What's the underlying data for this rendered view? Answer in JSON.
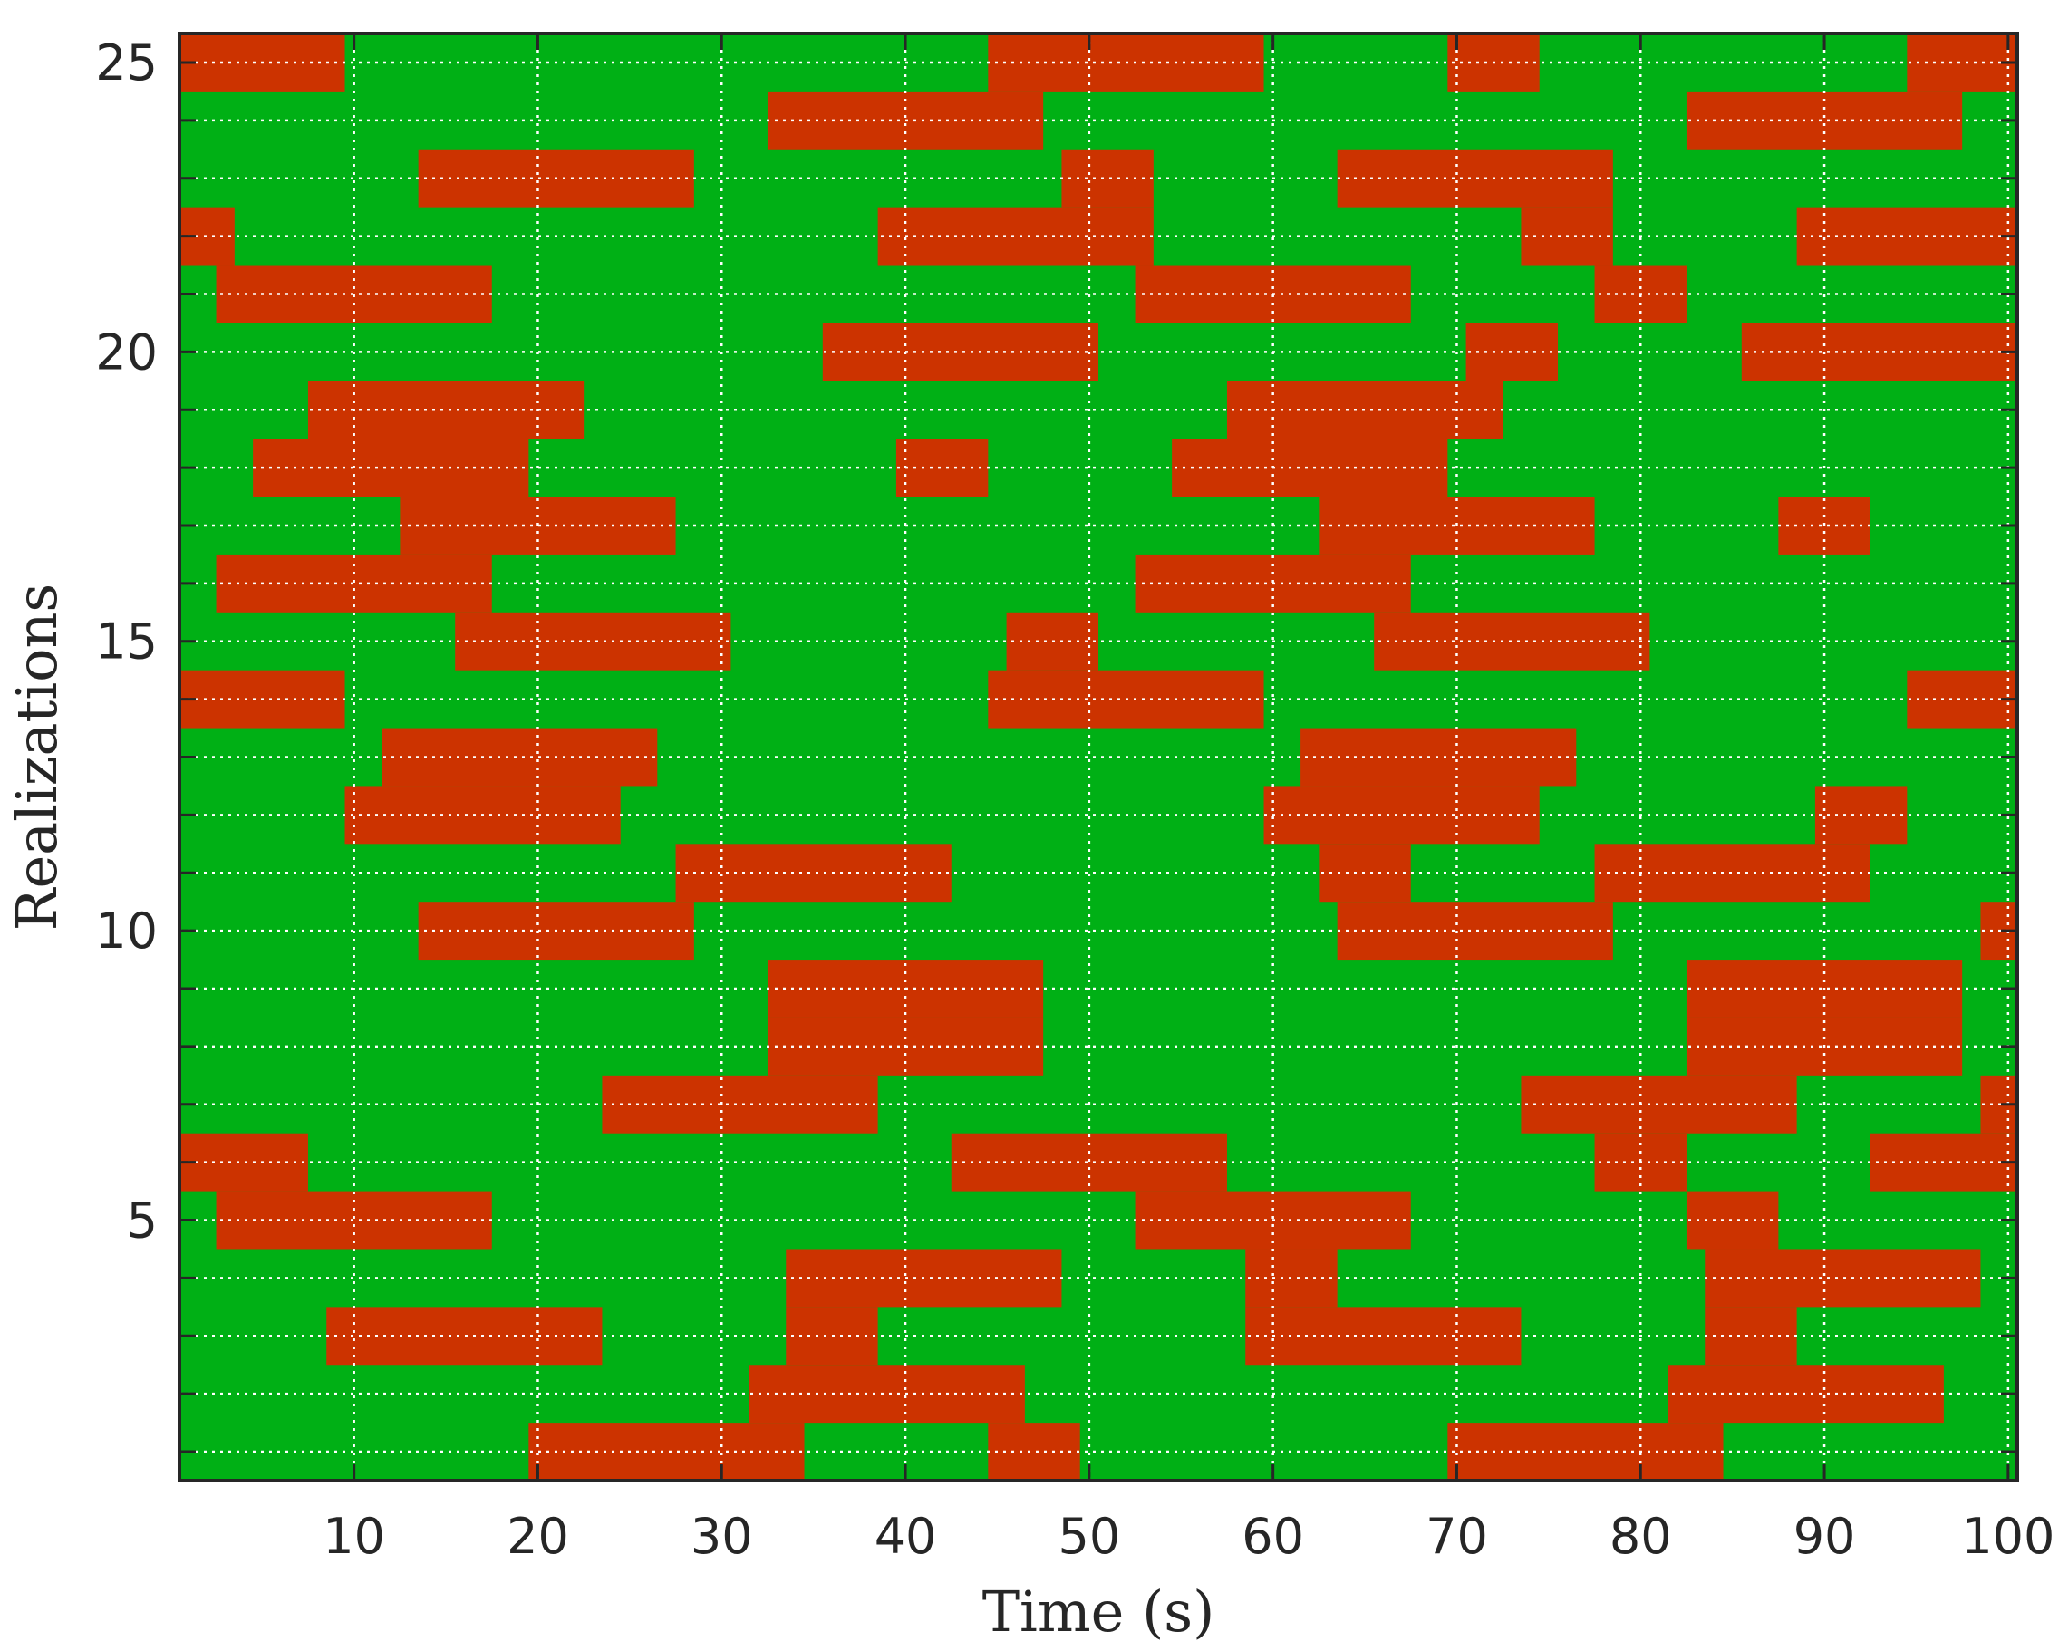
{
  "chart_data": {
    "type": "heatmap",
    "title": "",
    "xlabel": "Time (s)",
    "ylabel": "Realizations",
    "xlim": [
      0.5,
      100.5
    ],
    "ylim": [
      0.5,
      25.5
    ],
    "xticks": [
      10,
      20,
      30,
      40,
      50,
      60,
      70,
      80,
      90,
      100
    ],
    "yticks": [
      5,
      10,
      15,
      20,
      25
    ],
    "grid": true,
    "grid_style": "dotted white",
    "colors": {
      "state_1": "#cc3300",
      "state_0": "#00b015",
      "axis": "#262626",
      "grid": "#ffffff"
    },
    "state_meaning": "red intervals per realization; remaining time steps are green",
    "rows": [
      {
        "realization": 1,
        "red_intervals": [
          [
            20,
            34
          ],
          [
            45,
            49
          ],
          [
            70,
            84
          ]
        ]
      },
      {
        "realization": 2,
        "red_intervals": [
          [
            32,
            46
          ],
          [
            82,
            96
          ]
        ]
      },
      {
        "realization": 3,
        "red_intervals": [
          [
            9,
            23
          ],
          [
            34,
            38
          ],
          [
            59,
            73
          ],
          [
            84,
            88
          ]
        ]
      },
      {
        "realization": 4,
        "red_intervals": [
          [
            34,
            48
          ],
          [
            59,
            63
          ],
          [
            84,
            98
          ]
        ]
      },
      {
        "realization": 5,
        "red_intervals": [
          [
            3,
            17
          ],
          [
            53,
            67
          ],
          [
            83,
            87
          ]
        ]
      },
      {
        "realization": 6,
        "red_intervals": [
          [
            1,
            7
          ],
          [
            43,
            57
          ],
          [
            78,
            82
          ],
          [
            93,
            100
          ]
        ]
      },
      {
        "realization": 7,
        "red_intervals": [
          [
            24,
            38
          ],
          [
            74,
            88
          ],
          [
            99,
            100
          ]
        ]
      },
      {
        "realization": 8,
        "red_intervals": [
          [
            33,
            47
          ],
          [
            83,
            97
          ]
        ]
      },
      {
        "realization": 9,
        "red_intervals": [
          [
            33,
            47
          ],
          [
            83,
            97
          ]
        ]
      },
      {
        "realization": 10,
        "red_intervals": [
          [
            14,
            28
          ],
          [
            64,
            78
          ],
          [
            99,
            100
          ]
        ]
      },
      {
        "realization": 11,
        "red_intervals": [
          [
            28,
            42
          ],
          [
            63,
            67
          ],
          [
            78,
            92
          ]
        ]
      },
      {
        "realization": 12,
        "red_intervals": [
          [
            10,
            24
          ],
          [
            60,
            74
          ],
          [
            90,
            94
          ]
        ]
      },
      {
        "realization": 13,
        "red_intervals": [
          [
            12,
            26
          ],
          [
            62,
            76
          ]
        ]
      },
      {
        "realization": 14,
        "red_intervals": [
          [
            1,
            9
          ],
          [
            45,
            59
          ],
          [
            95,
            100
          ]
        ]
      },
      {
        "realization": 15,
        "red_intervals": [
          [
            16,
            30
          ],
          [
            46,
            50
          ],
          [
            66,
            80
          ]
        ]
      },
      {
        "realization": 16,
        "red_intervals": [
          [
            3,
            17
          ],
          [
            53,
            67
          ]
        ]
      },
      {
        "realization": 17,
        "red_intervals": [
          [
            13,
            27
          ],
          [
            63,
            77
          ],
          [
            88,
            92
          ]
        ]
      },
      {
        "realization": 18,
        "red_intervals": [
          [
            5,
            19
          ],
          [
            40,
            44
          ],
          [
            55,
            69
          ]
        ]
      },
      {
        "realization": 19,
        "red_intervals": [
          [
            8,
            22
          ],
          [
            58,
            72
          ]
        ]
      },
      {
        "realization": 20,
        "red_intervals": [
          [
            36,
            50
          ],
          [
            71,
            75
          ],
          [
            86,
            100
          ]
        ]
      },
      {
        "realization": 21,
        "red_intervals": [
          [
            3,
            17
          ],
          [
            53,
            67
          ],
          [
            78,
            82
          ]
        ]
      },
      {
        "realization": 22,
        "red_intervals": [
          [
            1,
            3
          ],
          [
            39,
            53
          ],
          [
            74,
            78
          ],
          [
            89,
            100
          ]
        ]
      },
      {
        "realization": 23,
        "red_intervals": [
          [
            14,
            28
          ],
          [
            49,
            53
          ],
          [
            64,
            78
          ]
        ]
      },
      {
        "realization": 24,
        "red_intervals": [
          [
            33,
            47
          ],
          [
            83,
            97
          ]
        ]
      },
      {
        "realization": 25,
        "red_intervals": [
          [
            1,
            9
          ],
          [
            45,
            59
          ],
          [
            70,
            74
          ],
          [
            95,
            100
          ]
        ]
      }
    ]
  }
}
